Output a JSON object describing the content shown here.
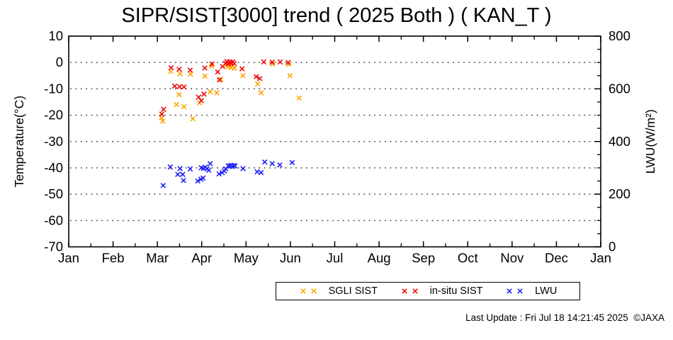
{
  "title": "SIPR/SIST[3000] trend ( 2025 Both ) ( KAN_T )",
  "footer": {
    "last_update": "Last Update : Fri Jul 18 14:21:45 2025  ©JAXA"
  },
  "chart_data": {
    "type": "scatter",
    "title": "SIPR/SIST[3000] trend ( 2025 Both ) ( KAN_T )",
    "marker": "x",
    "grid": true,
    "background": "#ffffff",
    "axis_color": "#000000",
    "grid_color": "#444444",
    "x_axis": {
      "label": "",
      "tick_labels": [
        "Jan",
        "Feb",
        "Mar",
        "Apr",
        "May",
        "Jun",
        "Jul",
        "Aug",
        "Sep",
        "Oct",
        "Nov",
        "Dec",
        "Jan"
      ],
      "range_months": [
        0,
        12
      ],
      "minor_step_months": 0.5
    },
    "y_left": {
      "label": "Temperature(°C)",
      "ticks": [
        10,
        0,
        -10,
        -20,
        -30,
        -40,
        -50,
        -60,
        -70
      ],
      "range": [
        -70,
        10
      ],
      "gridlines_at": [
        0,
        -10,
        -20,
        -30,
        -40,
        -50,
        -60
      ]
    },
    "y_right": {
      "label": "LWU(W/m²)",
      "ticks": [
        0,
        200,
        400,
        600,
        800
      ],
      "range": [
        0,
        800
      ],
      "minor_step": 50
    },
    "legend": {
      "position": "bottom",
      "entries": [
        "SGLI SIST",
        "in-situ SIST",
        "LWU"
      ]
    },
    "series": [
      {
        "name": "SGLI SIST",
        "color": "#ffa500",
        "axis": "left",
        "points": [
          [
            2.09,
            -21.0
          ],
          [
            2.12,
            -22.3
          ],
          [
            2.3,
            -3.4
          ],
          [
            2.43,
            -16.0
          ],
          [
            2.49,
            -12.2
          ],
          [
            2.51,
            -4.3
          ],
          [
            2.6,
            -16.8
          ],
          [
            2.75,
            -4.4
          ],
          [
            2.8,
            -21.4
          ],
          [
            2.95,
            -15.3
          ],
          [
            3.07,
            -5.2
          ],
          [
            3.19,
            -11.1
          ],
          [
            3.22,
            -1.4
          ],
          [
            3.34,
            -11.5
          ],
          [
            3.43,
            -6.4
          ],
          [
            3.56,
            -1.0
          ],
          [
            3.6,
            -1.6
          ],
          [
            3.63,
            -0.9
          ],
          [
            3.66,
            -1.9
          ],
          [
            3.7,
            -1.2
          ],
          [
            3.74,
            -2.2
          ],
          [
            3.93,
            -5.0
          ],
          [
            4.26,
            -8.1
          ],
          [
            4.34,
            -11.5
          ],
          [
            4.6,
            -0.6
          ],
          [
            4.96,
            -0.7
          ],
          [
            4.99,
            -5.0
          ],
          [
            5.2,
            -13.5
          ]
        ]
      },
      {
        "name": "in-situ SIST",
        "color": "#ee0a0a",
        "axis": "left",
        "points": [
          [
            2.1,
            -19.6
          ],
          [
            2.14,
            -17.8
          ],
          [
            2.31,
            -2.0
          ],
          [
            2.39,
            -9.0
          ],
          [
            2.49,
            -2.6
          ],
          [
            2.5,
            -9.2
          ],
          [
            2.6,
            -9.3
          ],
          [
            2.74,
            -2.9
          ],
          [
            2.93,
            -13.2
          ],
          [
            2.99,
            -14.5
          ],
          [
            3.05,
            -12.0
          ],
          [
            3.07,
            -2.1
          ],
          [
            3.23,
            -0.6
          ],
          [
            3.36,
            -3.6
          ],
          [
            3.4,
            -6.6
          ],
          [
            3.47,
            -1.5
          ],
          [
            3.54,
            -0.3
          ],
          [
            3.57,
            0.3
          ],
          [
            3.6,
            -0.5
          ],
          [
            3.63,
            0.2
          ],
          [
            3.66,
            -0.1
          ],
          [
            3.7,
            0.2
          ],
          [
            3.73,
            -0.4
          ],
          [
            3.91,
            -2.4
          ],
          [
            4.23,
            -5.4
          ],
          [
            4.31,
            -6.1
          ],
          [
            4.4,
            0.2
          ],
          [
            4.59,
            0.1
          ],
          [
            4.77,
            0.2
          ],
          [
            4.95,
            0.0
          ]
        ]
      },
      {
        "name": "LWU",
        "color": "#2020f5",
        "axis": "right",
        "points": [
          [
            2.13,
            233
          ],
          [
            2.29,
            303
          ],
          [
            2.46,
            275
          ],
          [
            2.51,
            297
          ],
          [
            2.57,
            275
          ],
          [
            2.59,
            252
          ],
          [
            2.74,
            296
          ],
          [
            2.91,
            250
          ],
          [
            2.98,
            257
          ],
          [
            2.99,
            300
          ],
          [
            3.03,
            261
          ],
          [
            3.04,
            298
          ],
          [
            3.08,
            302
          ],
          [
            3.12,
            296
          ],
          [
            3.16,
            291
          ],
          [
            3.19,
            316
          ],
          [
            3.39,
            277
          ],
          [
            3.46,
            282
          ],
          [
            3.51,
            288
          ],
          [
            3.54,
            296
          ],
          [
            3.6,
            308
          ],
          [
            3.63,
            306
          ],
          [
            3.66,
            310
          ],
          [
            3.69,
            305
          ],
          [
            3.72,
            309
          ],
          [
            3.75,
            307
          ],
          [
            3.93,
            297
          ],
          [
            4.25,
            285
          ],
          [
            4.34,
            282
          ],
          [
            4.42,
            322
          ],
          [
            4.59,
            316
          ],
          [
            4.76,
            311
          ],
          [
            5.04,
            320
          ]
        ]
      }
    ]
  }
}
